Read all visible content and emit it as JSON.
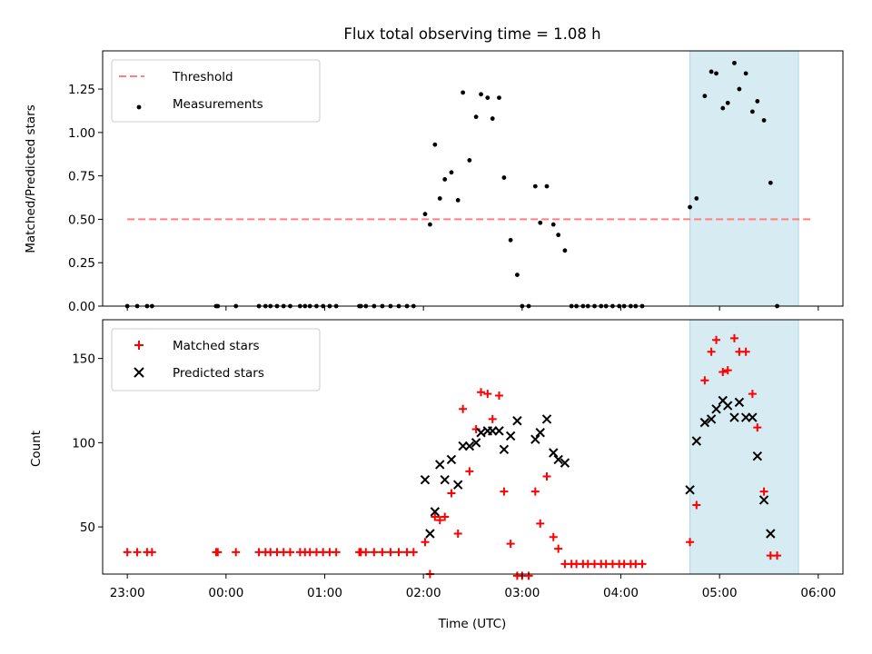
{
  "chart_data": [
    {
      "type": "scatter",
      "title": "Flux total observing time = 1.08 h",
      "xlabel": "",
      "ylabel": "Matched/Predicted stars",
      "xlim": [
        "22:45",
        "06:15"
      ],
      "ylim": [
        0,
        1.47
      ],
      "yticks": [
        "0.00",
        "0.25",
        "0.50",
        "0.75",
        "1.00",
        "1.25"
      ],
      "legend_position": "top-left",
      "highlight_span": [
        "04:42",
        "05:48"
      ],
      "threshold": {
        "name": "Threshold",
        "value": 0.5,
        "x_range": [
          "23:00",
          "05:57"
        ],
        "color": "#ff7f7f"
      },
      "series": [
        {
          "name": "Measurements",
          "color": "#000000",
          "points": [
            [
              "23:00",
              0
            ],
            [
              "23:06",
              0
            ],
            [
              "23:12",
              0
            ],
            [
              "23:15",
              0
            ],
            [
              "23:54",
              0
            ],
            [
              "23:55",
              0
            ],
            [
              "00:06",
              0
            ],
            [
              "00:20",
              0
            ],
            [
              "00:24",
              0
            ],
            [
              "00:27",
              0
            ],
            [
              "00:31",
              0
            ],
            [
              "00:35",
              0
            ],
            [
              "00:39",
              0
            ],
            [
              "00:45",
              0
            ],
            [
              "00:48",
              0
            ],
            [
              "00:51",
              0
            ],
            [
              "00:55",
              0
            ],
            [
              "00:59",
              0
            ],
            [
              "01:03",
              0
            ],
            [
              "01:07",
              0
            ],
            [
              "01:21",
              0
            ],
            [
              "01:22",
              0
            ],
            [
              "01:25",
              0
            ],
            [
              "01:30",
              0
            ],
            [
              "01:35",
              0
            ],
            [
              "01:40",
              0
            ],
            [
              "01:45",
              0
            ],
            [
              "01:50",
              0
            ],
            [
              "01:54",
              0
            ],
            [
              "02:01",
              0.53
            ],
            [
              "02:04",
              0.47
            ],
            [
              "02:07",
              0.93
            ],
            [
              "02:10",
              0.62
            ],
            [
              "02:13",
              0.73
            ],
            [
              "02:17",
              0.77
            ],
            [
              "02:21",
              0.61
            ],
            [
              "02:24",
              1.23
            ],
            [
              "02:28",
              0.84
            ],
            [
              "02:32",
              1.09
            ],
            [
              "02:35",
              1.22
            ],
            [
              "02:39",
              1.2
            ],
            [
              "02:42",
              1.08
            ],
            [
              "02:46",
              1.2
            ],
            [
              "02:49",
              0.74
            ],
            [
              "02:53",
              0.38
            ],
            [
              "02:57",
              0.18
            ],
            [
              "03:00",
              0
            ],
            [
              "03:04",
              0
            ],
            [
              "03:08",
              0.69
            ],
            [
              "03:11",
              0.48
            ],
            [
              "03:15",
              0.69
            ],
            [
              "03:19",
              0.47
            ],
            [
              "03:22",
              0.41
            ],
            [
              "03:26",
              0.32
            ],
            [
              "03:30",
              0
            ],
            [
              "03:33",
              0
            ],
            [
              "03:37",
              0
            ],
            [
              "03:40",
              0
            ],
            [
              "03:44",
              0
            ],
            [
              "03:48",
              0
            ],
            [
              "03:51",
              0
            ],
            [
              "03:55",
              0
            ],
            [
              "03:59",
              0
            ],
            [
              "04:02",
              0
            ],
            [
              "04:06",
              0
            ],
            [
              "04:09",
              0
            ],
            [
              "04:13",
              0
            ],
            [
              "04:42",
              0.57
            ],
            [
              "04:46",
              0.62
            ],
            [
              "04:51",
              1.21
            ],
            [
              "04:55",
              1.35
            ],
            [
              "04:58",
              1.34
            ],
            [
              "05:02",
              1.14
            ],
            [
              "05:05",
              1.17
            ],
            [
              "05:09",
              1.4
            ],
            [
              "05:12",
              1.25
            ],
            [
              "05:16",
              1.34
            ],
            [
              "05:20",
              1.12
            ],
            [
              "05:23",
              1.18
            ],
            [
              "05:27",
              1.07
            ],
            [
              "05:31",
              0.71
            ],
            [
              "05:35",
              0
            ]
          ]
        }
      ]
    },
    {
      "type": "scatter",
      "title": "",
      "xlabel": "Time (UTC)",
      "ylabel": "Count",
      "xlim": [
        "22:45",
        "06:15"
      ],
      "ylim": [
        22,
        173
      ],
      "xticks": [
        "23:00",
        "00:00",
        "01:00",
        "02:00",
        "03:00",
        "04:00",
        "05:00",
        "06:00"
      ],
      "yticks": [
        "50",
        "100",
        "150"
      ],
      "legend_position": "top-left",
      "highlight_span": [
        "04:42",
        "05:48"
      ],
      "series": [
        {
          "name": "Matched stars",
          "marker": "plus",
          "color": "#ff0000",
          "points": [
            [
              "23:00",
              35
            ],
            [
              "23:06",
              35
            ],
            [
              "23:12",
              35
            ],
            [
              "23:15",
              35
            ],
            [
              "23:54",
              35
            ],
            [
              "23:55",
              35
            ],
            [
              "00:06",
              35
            ],
            [
              "00:20",
              35
            ],
            [
              "00:24",
              35
            ],
            [
              "00:27",
              35
            ],
            [
              "00:31",
              35
            ],
            [
              "00:35",
              35
            ],
            [
              "00:39",
              35
            ],
            [
              "00:45",
              35
            ],
            [
              "00:48",
              35
            ],
            [
              "00:51",
              35
            ],
            [
              "00:55",
              35
            ],
            [
              "00:59",
              35
            ],
            [
              "01:03",
              35
            ],
            [
              "01:07",
              35
            ],
            [
              "01:21",
              35
            ],
            [
              "01:22",
              35
            ],
            [
              "01:25",
              35
            ],
            [
              "01:30",
              35
            ],
            [
              "01:35",
              35
            ],
            [
              "01:40",
              35
            ],
            [
              "01:45",
              35
            ],
            [
              "01:50",
              35
            ],
            [
              "01:54",
              35
            ],
            [
              "02:01",
              41
            ],
            [
              "02:04",
              22
            ],
            [
              "02:07",
              56
            ],
            [
              "02:10",
              54
            ],
            [
              "02:13",
              56
            ],
            [
              "02:17",
              70
            ],
            [
              "02:21",
              46
            ],
            [
              "02:24",
              120
            ],
            [
              "02:28",
              83
            ],
            [
              "02:32",
              108
            ],
            [
              "02:35",
              130
            ],
            [
              "02:39",
              129
            ],
            [
              "02:42",
              114
            ],
            [
              "02:46",
              128
            ],
            [
              "02:49",
              71
            ],
            [
              "02:53",
              40
            ],
            [
              "02:57",
              21
            ],
            [
              "03:00",
              21
            ],
            [
              "03:04",
              21
            ],
            [
              "03:08",
              71
            ],
            [
              "03:11",
              52
            ],
            [
              "03:15",
              80
            ],
            [
              "03:19",
              44
            ],
            [
              "03:22",
              37
            ],
            [
              "03:26",
              28
            ],
            [
              "03:30",
              28
            ],
            [
              "03:33",
              28
            ],
            [
              "03:37",
              28
            ],
            [
              "03:40",
              28
            ],
            [
              "03:44",
              28
            ],
            [
              "03:48",
              28
            ],
            [
              "03:51",
              28
            ],
            [
              "03:55",
              28
            ],
            [
              "03:59",
              28
            ],
            [
              "04:02",
              28
            ],
            [
              "04:06",
              28
            ],
            [
              "04:09",
              28
            ],
            [
              "04:13",
              28
            ],
            [
              "04:42",
              41
            ],
            [
              "04:46",
              63
            ],
            [
              "04:51",
              137
            ],
            [
              "04:55",
              154
            ],
            [
              "04:58",
              161
            ],
            [
              "05:02",
              142
            ],
            [
              "05:05",
              143
            ],
            [
              "05:09",
              162
            ],
            [
              "05:12",
              154
            ],
            [
              "05:16",
              154
            ],
            [
              "05:20",
              129
            ],
            [
              "05:23",
              109
            ],
            [
              "05:27",
              71
            ],
            [
              "05:31",
              33
            ],
            [
              "05:35",
              33
            ]
          ]
        },
        {
          "name": "Predicted stars",
          "marker": "x",
          "color": "#000000",
          "points": [
            [
              "02:01",
              78
            ],
            [
              "02:04",
              46
            ],
            [
              "02:07",
              59
            ],
            [
              "02:10",
              87
            ],
            [
              "02:13",
              78
            ],
            [
              "02:17",
              90
            ],
            [
              "02:21",
              75
            ],
            [
              "02:24",
              98
            ],
            [
              "02:28",
              98
            ],
            [
              "02:32",
              100
            ],
            [
              "02:35",
              106
            ],
            [
              "02:39",
              107
            ],
            [
              "02:42",
              107
            ],
            [
              "02:46",
              107
            ],
            [
              "02:49",
              96
            ],
            [
              "02:53",
              104
            ],
            [
              "02:57",
              113
            ],
            [
              "03:08",
              102
            ],
            [
              "03:11",
              106
            ],
            [
              "03:15",
              114
            ],
            [
              "03:19",
              94
            ],
            [
              "03:22",
              90
            ],
            [
              "03:26",
              88
            ],
            [
              "04:42",
              72
            ],
            [
              "04:46",
              101
            ],
            [
              "04:51",
              112
            ],
            [
              "04:55",
              114
            ],
            [
              "04:58",
              120
            ],
            [
              "05:02",
              125
            ],
            [
              "05:05",
              122
            ],
            [
              "05:09",
              115
            ],
            [
              "05:12",
              124
            ],
            [
              "05:16",
              115
            ],
            [
              "05:20",
              115
            ],
            [
              "05:23",
              92
            ],
            [
              "05:27",
              66
            ],
            [
              "05:31",
              46
            ]
          ]
        }
      ]
    }
  ]
}
